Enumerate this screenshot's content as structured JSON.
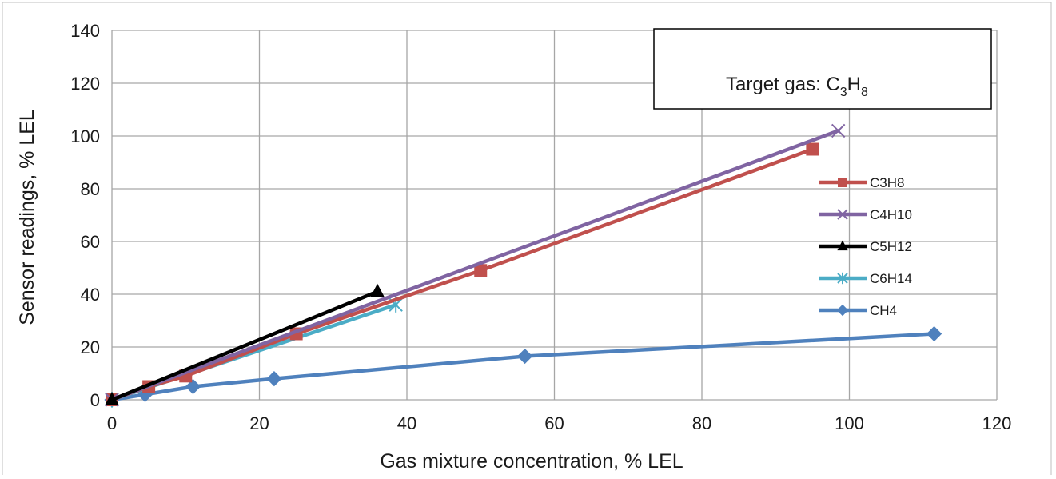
{
  "chart_data": {
    "type": "line",
    "title": "",
    "xlabel": "Gas mixture concentration, % LEL",
    "ylabel": "Sensor readings, % LEL",
    "xlim": [
      0,
      120
    ],
    "ylim": [
      0,
      140
    ],
    "xticks": [
      0,
      20,
      40,
      60,
      80,
      100,
      120
    ],
    "yticks": [
      0,
      20,
      40,
      60,
      80,
      100,
      120,
      140
    ],
    "grid": true,
    "legend_position": "right",
    "annotation": {
      "prefix": "Target gas: ",
      "base": "C",
      "sub1": "3",
      "mid": "H",
      "sub2": "8"
    },
    "series": [
      {
        "name": "C3H8",
        "color": "#c0504d",
        "marker": "square",
        "x": [
          0,
          5,
          10,
          25,
          50,
          95
        ],
        "y": [
          0,
          5,
          9,
          25,
          49,
          95
        ]
      },
      {
        "name": "C4H10",
        "color": "#8064a2",
        "marker": "x",
        "x": [
          0,
          98.5
        ],
        "y": [
          0,
          102
        ]
      },
      {
        "name": "C5H12",
        "color": "#000000",
        "marker": "triangle",
        "x": [
          0,
          36
        ],
        "y": [
          0,
          41
        ]
      },
      {
        "name": "C6H14",
        "color": "#4bacc6",
        "marker": "star",
        "x": [
          0,
          38.5
        ],
        "y": [
          0,
          36
        ]
      },
      {
        "name": "CH4",
        "color": "#4f81bd",
        "marker": "diamond",
        "x": [
          0,
          4.5,
          11,
          22,
          56,
          111.5
        ],
        "y": [
          0,
          2,
          5,
          8,
          16.5,
          25
        ]
      }
    ]
  }
}
